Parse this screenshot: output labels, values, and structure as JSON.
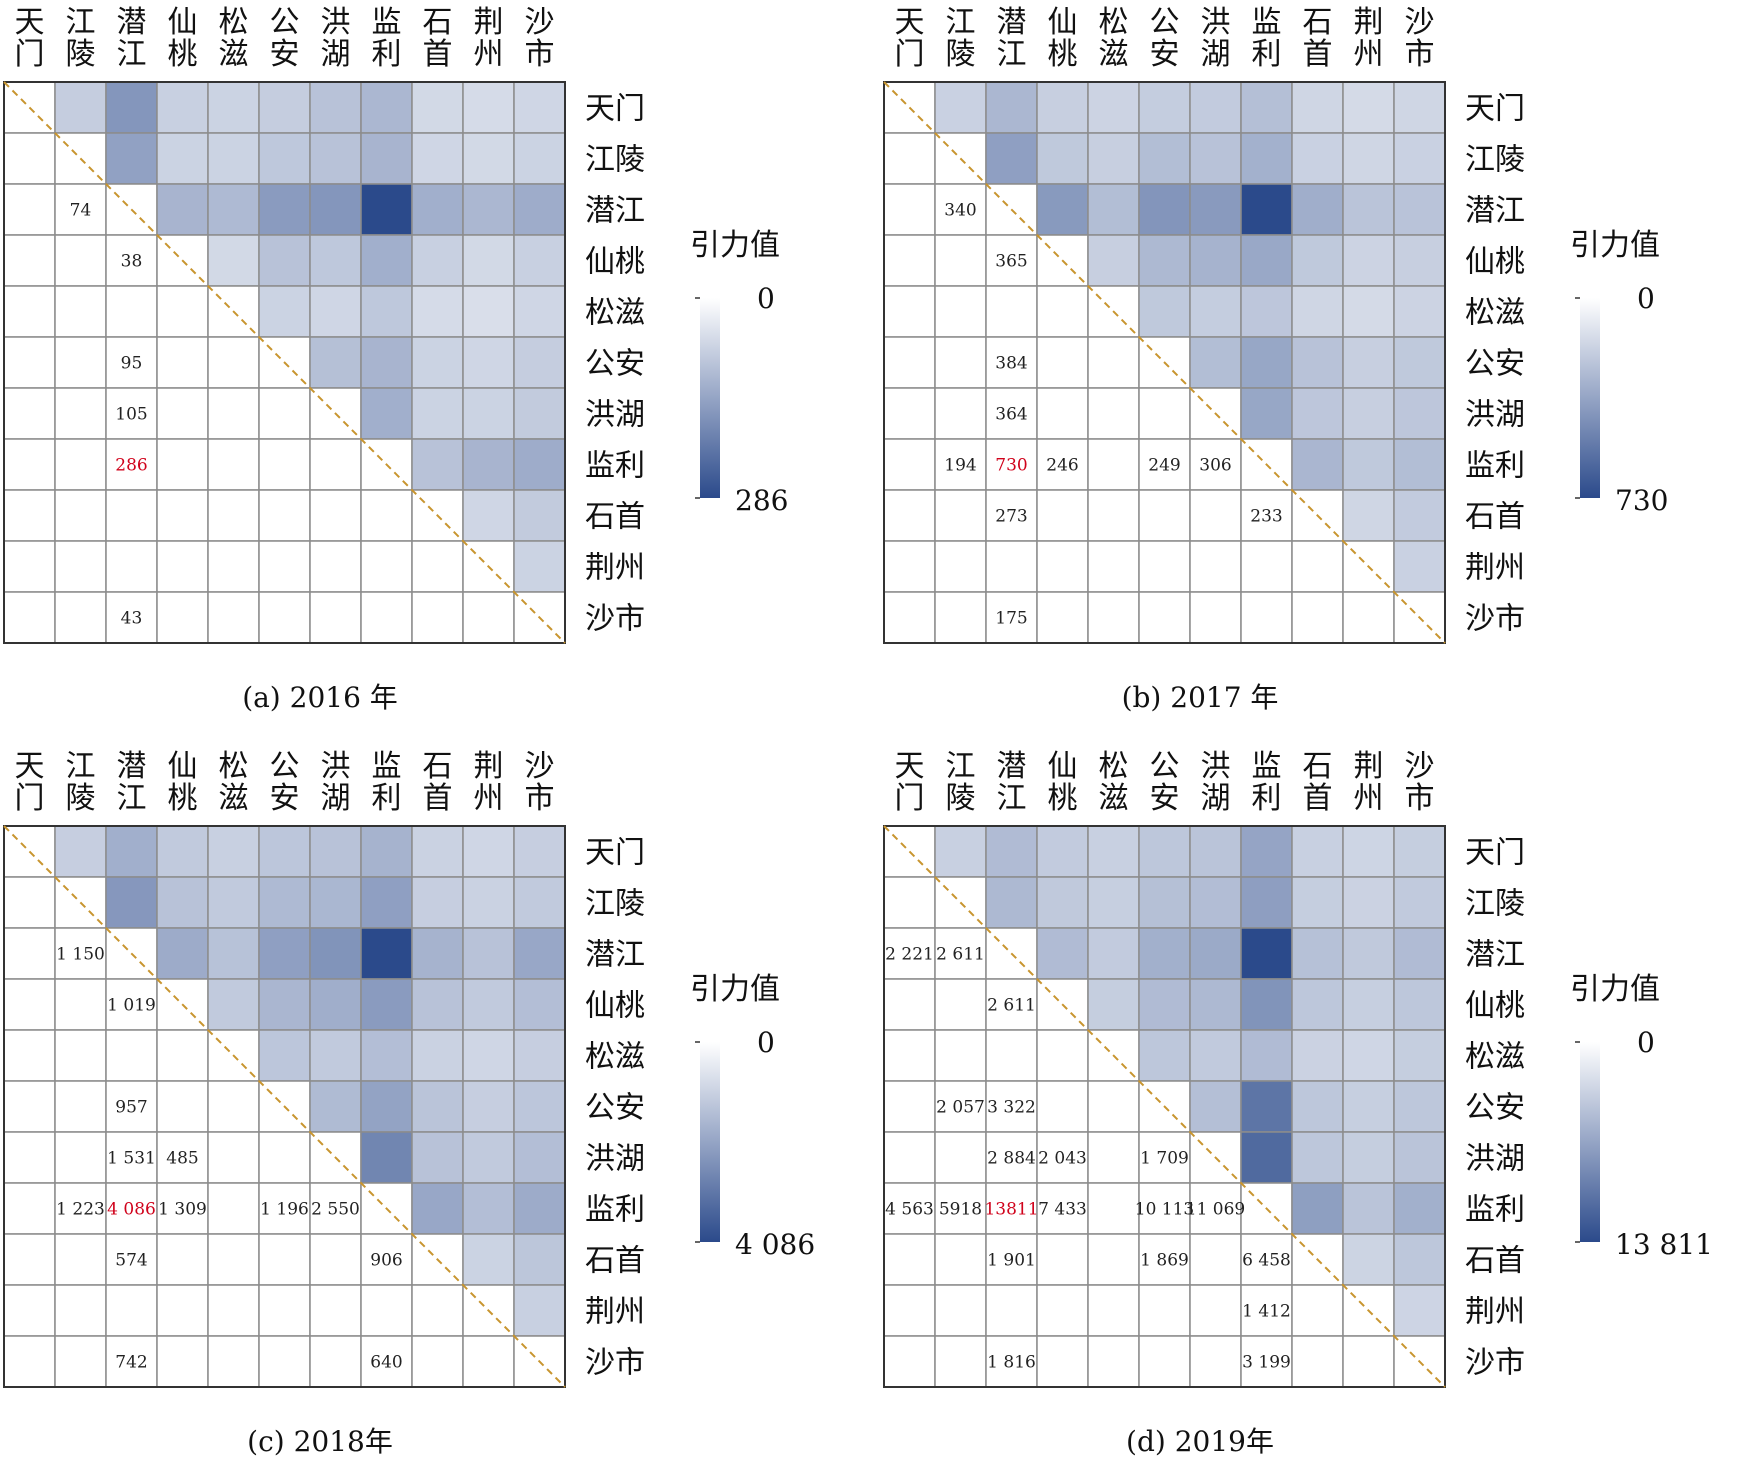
{
  "chart_data": [
    {
      "type": "heatmap",
      "caption": "(a) 2016 年",
      "cities": [
        "天门",
        "江陵",
        "潜江",
        "仙桃",
        "松滋",
        "公安",
        "洪湖",
        "监利",
        "石首",
        "荆州",
        "沙市"
      ],
      "colorbar": {
        "title": "引力值",
        "min": 0,
        "max": 286,
        "min_label": "0",
        "max_label": "286",
        "low_color": "#ffffff",
        "high_color": "#2b4a8b"
      },
      "highlight_color": "#d0021b",
      "diagonal_color": "#c8952f",
      "upper_values": [
        [
          null,
          50,
          150,
          45,
          40,
          50,
          70,
          90,
          30,
          25,
          35
        ],
        [
          null,
          null,
          130,
          40,
          40,
          60,
          70,
          95,
          35,
          30,
          40
        ],
        [
          null,
          null,
          null,
          95,
          85,
          140,
          150,
          286,
          105,
          90,
          110
        ],
        [
          null,
          null,
          null,
          null,
          30,
          70,
          60,
          105,
          45,
          30,
          45
        ],
        [
          null,
          null,
          null,
          null,
          null,
          40,
          35,
          60,
          25,
          20,
          35
        ],
        [
          null,
          null,
          null,
          null,
          null,
          null,
          75,
          95,
          40,
          35,
          50
        ],
        [
          null,
          null,
          null,
          null,
          null,
          null,
          null,
          105,
          40,
          40,
          55
        ],
        [
          null,
          null,
          null,
          null,
          null,
          null,
          null,
          null,
          70,
          95,
          110
        ],
        [
          null,
          null,
          null,
          null,
          null,
          null,
          null,
          null,
          null,
          35,
          55
        ],
        [
          null,
          null,
          null,
          null,
          null,
          null,
          null,
          null,
          null,
          null,
          40
        ],
        [
          null,
          null,
          null,
          null,
          null,
          null,
          null,
          null,
          null,
          null,
          null
        ]
      ],
      "lower_labels": [
        {
          "row": 2,
          "col": 1,
          "text": "74"
        },
        {
          "row": 3,
          "col": 2,
          "text": "38"
        },
        {
          "row": 5,
          "col": 2,
          "text": "95"
        },
        {
          "row": 6,
          "col": 2,
          "text": "105"
        },
        {
          "row": 7,
          "col": 2,
          "text": "286",
          "highlight": true
        },
        {
          "row": 10,
          "col": 2,
          "text": "43"
        }
      ]
    },
    {
      "type": "heatmap",
      "caption": "(b) 2017 年",
      "cities": [
        "天门",
        "江陵",
        "潜江",
        "仙桃",
        "松滋",
        "公安",
        "洪湖",
        "监利",
        "石首",
        "荆州",
        "沙市"
      ],
      "colorbar": {
        "title": "引力值",
        "min": 0,
        "max": 730,
        "min_label": "0",
        "max_label": "730",
        "low_color": "#ffffff",
        "high_color": "#2b4a8b"
      },
      "highlight_color": "#d0021b",
      "diagonal_color": "#c8952f",
      "upper_values": [
        [
          null,
          110,
          230,
          120,
          100,
          130,
          140,
          194,
          90,
          70,
          90
        ],
        [
          null,
          null,
          340,
          150,
          120,
          200,
          180,
          260,
          110,
          90,
          110
        ],
        [
          null,
          null,
          null,
          365,
          200,
          384,
          364,
          730,
          273,
          170,
          175
        ],
        [
          null,
          null,
          null,
          null,
          120,
          220,
          250,
          300,
          150,
          100,
          120
        ],
        [
          null,
          null,
          null,
          null,
          null,
          150,
          130,
          160,
          90,
          70,
          100
        ],
        [
          null,
          null,
          null,
          null,
          null,
          null,
          200,
          306,
          180,
          120,
          150
        ],
        [
          null,
          null,
          null,
          null,
          null,
          null,
          null,
          306,
          160,
          120,
          160
        ],
        [
          null,
          null,
          null,
          null,
          null,
          null,
          null,
          null,
          233,
          150,
          200
        ],
        [
          null,
          null,
          null,
          null,
          null,
          null,
          null,
          null,
          null,
          90,
          140
        ],
        [
          null,
          null,
          null,
          null,
          null,
          null,
          null,
          null,
          null,
          null,
          110
        ],
        [
          null,
          null,
          null,
          null,
          null,
          null,
          null,
          null,
          null,
          null,
          null
        ]
      ],
      "lower_labels": [
        {
          "row": 2,
          "col": 1,
          "text": "340"
        },
        {
          "row": 3,
          "col": 2,
          "text": "365"
        },
        {
          "row": 5,
          "col": 2,
          "text": "384"
        },
        {
          "row": 6,
          "col": 2,
          "text": "364"
        },
        {
          "row": 7,
          "col": 1,
          "text": "194"
        },
        {
          "row": 7,
          "col": 2,
          "text": "730",
          "highlight": true
        },
        {
          "row": 7,
          "col": 3,
          "text": "246"
        },
        {
          "row": 7,
          "col": 5,
          "text": "249"
        },
        {
          "row": 7,
          "col": 6,
          "text": "306"
        },
        {
          "row": 8,
          "col": 2,
          "text": "273"
        },
        {
          "row": 8,
          "col": 7,
          "text": "233"
        },
        {
          "row": 10,
          "col": 2,
          "text": "175"
        }
      ]
    },
    {
      "type": "heatmap",
      "caption": "(c) 2018年",
      "cities": [
        "天门",
        "江陵",
        "潜江",
        "仙桃",
        "松滋",
        "公安",
        "洪湖",
        "监利",
        "石首",
        "荆州",
        "沙市"
      ],
      "colorbar": {
        "title": "引力值",
        "min": 0,
        "max": 4086,
        "min_label": "0",
        "max_label": "4 086",
        "low_color": "#ffffff",
        "high_color": "#2b4a8b"
      },
      "highlight_color": "#d0021b",
      "diagonal_color": "#c8952f",
      "upper_values": [
        [
          null,
          700,
          1500,
          800,
          650,
          900,
          1000,
          1400,
          600,
          500,
          700
        ],
        [
          null,
          null,
          2100,
          1000,
          800,
          1223,
          1300,
          1900,
          700,
          600,
          800
        ],
        [
          null,
          null,
          null,
          1600,
          1019,
          1900,
          2200,
          4086,
          1400,
          1000,
          1700
        ],
        [
          null,
          null,
          null,
          null,
          800,
          1309,
          1531,
          2000,
          1000,
          800,
          1100
        ],
        [
          null,
          null,
          null,
          null,
          null,
          900,
          800,
          1100,
          600,
          500,
          700
        ],
        [
          null,
          null,
          null,
          null,
          null,
          null,
          1196,
          1800,
          957,
          700,
          900
        ],
        [
          null,
          null,
          null,
          null,
          null,
          null,
          null,
          2550,
          1000,
          800,
          1100
        ],
        [
          null,
          null,
          null,
          null,
          null,
          null,
          null,
          null,
          1700,
          1100,
          1600
        ],
        [
          null,
          null,
          null,
          null,
          null,
          null,
          null,
          null,
          null,
          574,
          906
        ],
        [
          null,
          null,
          null,
          null,
          null,
          null,
          null,
          null,
          null,
          null,
          640
        ],
        [
          null,
          null,
          null,
          null,
          null,
          null,
          null,
          null,
          null,
          null,
          null
        ]
      ],
      "lower_labels": [
        {
          "row": 2,
          "col": 1,
          "text": "1 150"
        },
        {
          "row": 3,
          "col": 2,
          "text": "1 019"
        },
        {
          "row": 5,
          "col": 2,
          "text": "957"
        },
        {
          "row": 6,
          "col": 2,
          "text": "1 531"
        },
        {
          "row": 6,
          "col": 3,
          "text": "485"
        },
        {
          "row": 7,
          "col": 1,
          "text": "1 223"
        },
        {
          "row": 7,
          "col": 2,
          "text": "4 086",
          "highlight": true
        },
        {
          "row": 7,
          "col": 3,
          "text": "1 309"
        },
        {
          "row": 7,
          "col": 5,
          "text": "1 196"
        },
        {
          "row": 7,
          "col": 6,
          "text": "2 550"
        },
        {
          "row": 8,
          "col": 2,
          "text": "574"
        },
        {
          "row": 8,
          "col": 7,
          "text": "906"
        },
        {
          "row": 10,
          "col": 2,
          "text": "742"
        },
        {
          "row": 10,
          "col": 7,
          "text": "640"
        }
      ]
    },
    {
      "type": "heatmap",
      "caption": "(d) 2019年",
      "cities": [
        "天门",
        "江陵",
        "潜江",
        "仙桃",
        "松滋",
        "公安",
        "洪湖",
        "监利",
        "石首",
        "荆州",
        "沙市"
      ],
      "colorbar": {
        "title": "引力值",
        "min": 0,
        "max": 13811,
        "min_label": "0",
        "max_label": "13 811",
        "low_color": "#ffffff",
        "high_color": "#2b4a8b"
      },
      "highlight_color": "#d0021b",
      "diagonal_color": "#c8952f",
      "upper_values": [
        [
          null,
          2221,
          4000,
          2600,
          2200,
          3000,
          3200,
          6000,
          2200,
          1800,
          2400
        ],
        [
          null,
          null,
          4200,
          2800,
          2300,
          3600,
          3800,
          6500,
          2400,
          2000,
          2700
        ],
        [
          null,
          null,
          null,
          4000,
          2611,
          5000,
          5500,
          13811,
          3500,
          2800,
          4000
        ],
        [
          null,
          null,
          null,
          null,
          2400,
          4000,
          4200,
          7433,
          3000,
          2300,
          3000
        ],
        [
          null,
          null,
          null,
          null,
          null,
          3000,
          2700,
          4000,
          2000,
          1700,
          2400
        ],
        [
          null,
          null,
          null,
          null,
          null,
          null,
          3700,
          10113,
          3000,
          2300,
          3000
        ],
        [
          null,
          null,
          null,
          null,
          null,
          null,
          null,
          11069,
          3000,
          2400,
          3200
        ],
        [
          null,
          null,
          null,
          null,
          null,
          null,
          null,
          null,
          6458,
          3200,
          5000
        ],
        [
          null,
          null,
          null,
          null,
          null,
          null,
          null,
          null,
          null,
          1869,
          3000
        ],
        [
          null,
          null,
          null,
          null,
          null,
          null,
          null,
          null,
          null,
          null,
          1816
        ],
        [
          null,
          null,
          null,
          null,
          null,
          null,
          null,
          null,
          null,
          null,
          null
        ]
      ],
      "lower_labels": [
        {
          "row": 2,
          "col": 0,
          "text": "2 221"
        },
        {
          "row": 2,
          "col": 1,
          "text": "2 611"
        },
        {
          "row": 3,
          "col": 2,
          "text": "2 611"
        },
        {
          "row": 5,
          "col": 1,
          "text": "2 057"
        },
        {
          "row": 5,
          "col": 2,
          "text": "3 322"
        },
        {
          "row": 6,
          "col": 2,
          "text": "2 884"
        },
        {
          "row": 6,
          "col": 3,
          "text": "2 043"
        },
        {
          "row": 6,
          "col": 5,
          "text": "1 709"
        },
        {
          "row": 7,
          "col": 0,
          "text": "4 563"
        },
        {
          "row": 7,
          "col": 1,
          "text": "5918"
        },
        {
          "row": 7,
          "col": 2,
          "text": "13811",
          "highlight": true
        },
        {
          "row": 7,
          "col": 3,
          "text": "7 433"
        },
        {
          "row": 7,
          "col": 5,
          "text": "10 113"
        },
        {
          "row": 7,
          "col": 6,
          "text": "11 069"
        },
        {
          "row": 8,
          "col": 2,
          "text": "1 901"
        },
        {
          "row": 8,
          "col": 5,
          "text": "1 869"
        },
        {
          "row": 8,
          "col": 7,
          "text": "6 458"
        },
        {
          "row": 9,
          "col": 7,
          "text": "1 412"
        },
        {
          "row": 10,
          "col": 2,
          "text": "1 816"
        },
        {
          "row": 10,
          "col": 7,
          "text": "3 199"
        }
      ]
    }
  ]
}
